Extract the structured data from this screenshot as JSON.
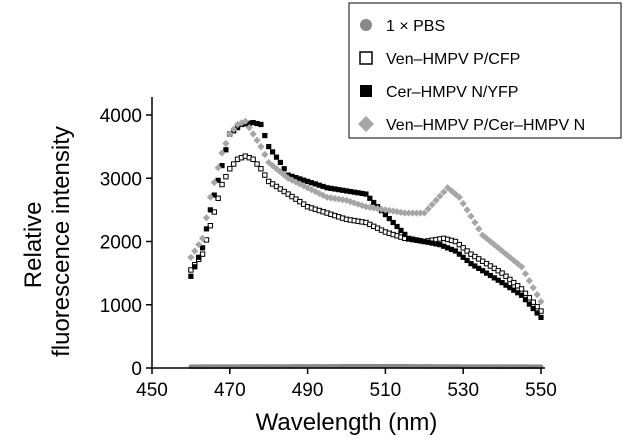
{
  "chart_data": {
    "type": "scatter",
    "xlabel": "Wavelength (nm)",
    "ylabel": [
      "Relative",
      "fluorescence intensity"
    ],
    "xlim": [
      450,
      550
    ],
    "ylim": [
      0,
      4000
    ],
    "xticks": [
      450,
      470,
      490,
      510,
      530,
      550
    ],
    "yticks": [
      0,
      1000,
      2000,
      3000,
      4000
    ],
    "grid": false,
    "legend_position": "top-right",
    "colors": {
      "pbs": "#888888",
      "p_cfp": "#000000",
      "n_yfp": "#000000",
      "p_n": "#a6a6a6"
    },
    "series": [
      {
        "key": "pbs",
        "name": "1 × PBS",
        "marker": "circle",
        "anchors": [
          [
            460,
            20
          ],
          [
            470,
            22
          ],
          [
            490,
            25
          ],
          [
            510,
            28
          ],
          [
            530,
            22
          ],
          [
            550,
            20
          ]
        ]
      },
      {
        "key": "p_cfp",
        "name": "Ven–HMPV P/CFP",
        "marker": "open-square",
        "anchors": [
          [
            460,
            1550
          ],
          [
            463,
            1800
          ],
          [
            465,
            2250
          ],
          [
            468,
            2900
          ],
          [
            470,
            3150
          ],
          [
            472,
            3300
          ],
          [
            474,
            3350
          ],
          [
            476,
            3300
          ],
          [
            478,
            3150
          ],
          [
            480,
            2950
          ],
          [
            485,
            2750
          ],
          [
            490,
            2550
          ],
          [
            495,
            2450
          ],
          [
            500,
            2350
          ],
          [
            505,
            2300
          ],
          [
            510,
            2150
          ],
          [
            515,
            2050
          ],
          [
            520,
            2000
          ],
          [
            525,
            2050
          ],
          [
            528,
            2000
          ],
          [
            532,
            1800
          ],
          [
            536,
            1650
          ],
          [
            540,
            1500
          ],
          [
            545,
            1250
          ],
          [
            550,
            900
          ]
        ]
      },
      {
        "key": "n_yfp",
        "name": "Cer–HMPV N/YFP",
        "marker": "filled-square",
        "anchors": [
          [
            460,
            1450
          ],
          [
            463,
            1900
          ],
          [
            465,
            2500
          ],
          [
            468,
            3200
          ],
          [
            470,
            3700
          ],
          [
            473,
            3850
          ],
          [
            476,
            3880
          ],
          [
            478,
            3850
          ],
          [
            480,
            3500
          ],
          [
            483,
            3250
          ],
          [
            485,
            3050
          ],
          [
            490,
            2950
          ],
          [
            495,
            2850
          ],
          [
            500,
            2800
          ],
          [
            505,
            2750
          ],
          [
            508,
            2550
          ],
          [
            512,
            2300
          ],
          [
            516,
            2050
          ],
          [
            520,
            2000
          ],
          [
            524,
            1950
          ],
          [
            528,
            1850
          ],
          [
            532,
            1650
          ],
          [
            536,
            1500
          ],
          [
            540,
            1350
          ],
          [
            545,
            1150
          ],
          [
            550,
            800
          ]
        ]
      },
      {
        "key": "p_n",
        "name": "Ven–HMPV P/Cer–HMPV N",
        "marker": "diamond",
        "anchors": [
          [
            460,
            1750
          ],
          [
            463,
            2050
          ],
          [
            465,
            2700
          ],
          [
            468,
            3400
          ],
          [
            470,
            3700
          ],
          [
            472,
            3850
          ],
          [
            474,
            3900
          ],
          [
            476,
            3700
          ],
          [
            478,
            3500
          ],
          [
            480,
            3250
          ],
          [
            485,
            3000
          ],
          [
            490,
            2850
          ],
          [
            495,
            2700
          ],
          [
            500,
            2650
          ],
          [
            505,
            2550
          ],
          [
            510,
            2500
          ],
          [
            515,
            2450
          ],
          [
            520,
            2450
          ],
          [
            523,
            2650
          ],
          [
            526,
            2850
          ],
          [
            529,
            2700
          ],
          [
            532,
            2400
          ],
          [
            535,
            2100
          ],
          [
            540,
            1850
          ],
          [
            545,
            1600
          ],
          [
            550,
            1050
          ]
        ]
      }
    ]
  }
}
